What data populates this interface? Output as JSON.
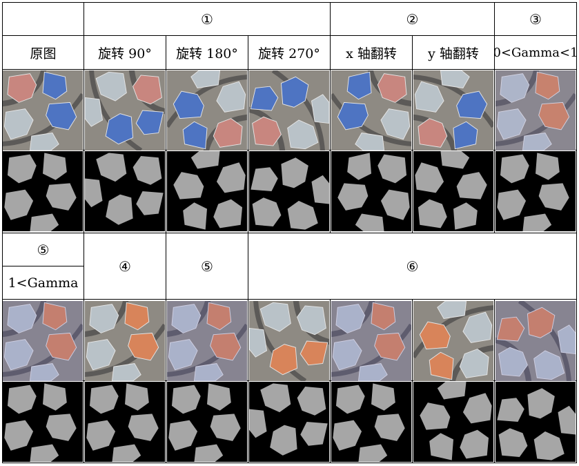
{
  "header": {
    "group1": "①",
    "group2": "②",
    "group3": "③",
    "group4": "④",
    "group5": "⑤",
    "group5_label": "⑤",
    "group6": "⑥",
    "original": "原图",
    "rotate90": "旋转 90°",
    "rotate180": "旋转 180°",
    "rotate270": "旋转 270°",
    "xflip": "x 轴翻转",
    "yflip": "y 轴翻转",
    "gamma_low": "0<Gamma<1",
    "gamma_high": "1<Gamma"
  },
  "palette": {
    "mask_background": "#000000",
    "mask_building": "#a6a6a6",
    "roof_blue": "#4e74c2",
    "roof_red": "#c8867f",
    "roof_grey": "#b9c2c8",
    "roof_orange": "#d8845a",
    "ground": "#8e8a83",
    "road": "#5c5a58"
  }
}
